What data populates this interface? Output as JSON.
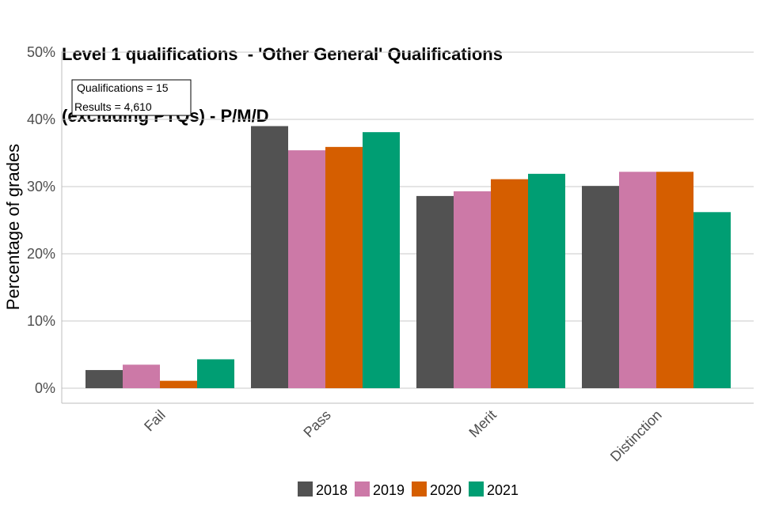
{
  "title": {
    "line1": "Level 1 qualifications  - 'Other General' Qualifications",
    "line2": "(excluding PTQs) - P/M/D"
  },
  "annotation": {
    "line1": "Qualifications = 15",
    "line2": "Results = 4,610"
  },
  "chart_data": {
    "type": "bar",
    "categories": [
      "Fail",
      "Pass",
      "Merit",
      "Distinction"
    ],
    "series": [
      {
        "name": "2018",
        "color": "#525252",
        "values": [
          2.7,
          39.0,
          28.6,
          30.1
        ]
      },
      {
        "name": "2019",
        "color": "#cc79a7",
        "values": [
          3.5,
          35.4,
          29.3,
          32.2
        ]
      },
      {
        "name": "2020",
        "color": "#d55e00",
        "values": [
          1.1,
          35.9,
          31.1,
          32.2
        ]
      },
      {
        "name": "2021",
        "color": "#009e73",
        "values": [
          4.3,
          38.1,
          31.9,
          26.2
        ]
      }
    ],
    "ylabel": "Percentage of grades",
    "xlabel": "",
    "ylim": [
      0,
      50
    ],
    "yticks": [
      0,
      10,
      20,
      30,
      40,
      50
    ],
    "ytick_labels": [
      "0%",
      "10%",
      "20%",
      "30%",
      "40%",
      "50%"
    ],
    "grid": "horizontal",
    "legend_position": "bottom"
  }
}
